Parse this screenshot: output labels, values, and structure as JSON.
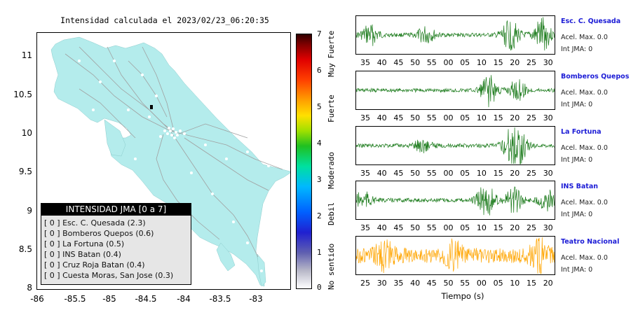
{
  "map": {
    "title": "Intensidad calculada el 2023/02/23_06:20:35",
    "y_ticks": [
      "11",
      "10.5",
      "10",
      "9.5",
      "9",
      "8.5",
      "8"
    ],
    "x_ticks": [
      "-86",
      "-85.5",
      "-85",
      "-84.5",
      "-84",
      "-83.5",
      "-83"
    ],
    "land_color": "#b4ecec",
    "road_color": "#a0a0a0"
  },
  "legend": {
    "header": "INTENSIDAD JMA [0 a 7]",
    "items": [
      "[ 0 ]  Esc. C. Quesada (2.3)",
      "[ 0 ]  Bomberos Quepos (0.6)",
      "[ 0 ]  La Fortuna (0.5)",
      "[ 0 ]  INS Batan (0.4)",
      "[ 0 ]  Cruz Roja Batan (0.4)",
      "[ 0 ]  Cuesta Moras, San Jose (0.3)"
    ]
  },
  "colorbar": {
    "ticks": [
      "7",
      "6",
      "5",
      "4",
      "3",
      "2",
      "1",
      "0"
    ],
    "categories": [
      "Muy Fuerte",
      "Fuerte",
      "Moderado",
      "Debil",
      "No sentido"
    ]
  },
  "stations": [
    {
      "name": "Esc. C. Quesada",
      "acel": "Acel. Max. 0.0",
      "int": "Int JMA: 0",
      "color": "#1a7a1a",
      "ticks": [
        "35",
        "40",
        "45",
        "50",
        "55",
        "00",
        "05",
        "10",
        "15",
        "20",
        "25",
        "30"
      ]
    },
    {
      "name": "Bomberos Quepos",
      "acel": "Acel. Max. 0.0",
      "int": "Int JMA: 0",
      "color": "#1a7a1a",
      "ticks": [
        "35",
        "40",
        "45",
        "50",
        "55",
        "00",
        "05",
        "10",
        "15",
        "20",
        "25",
        "30"
      ]
    },
    {
      "name": "La Fortuna",
      "acel": "Acel. Max. 0.0",
      "int": "Int JMA: 0",
      "color": "#1a7a1a",
      "ticks": [
        "35",
        "40",
        "45",
        "50",
        "55",
        "00",
        "05",
        "10",
        "15",
        "20",
        "25",
        "30"
      ]
    },
    {
      "name": "INS Batan",
      "acel": "Acel. Max. 0.0",
      "int": "Int JMA: 0",
      "color": "#1a7a1a",
      "ticks": [
        "35",
        "40",
        "45",
        "50",
        "55",
        "00",
        "05",
        "10",
        "15",
        "20",
        "25",
        "30"
      ]
    },
    {
      "name": "Teatro Nacional",
      "acel": "Acel. Max. 0.0",
      "int": "Int JMA: 0",
      "color": "#ffa500",
      "ticks": [
        "25",
        "30",
        "35",
        "40",
        "45",
        "50",
        "55",
        "00",
        "05",
        "10",
        "15",
        "20"
      ]
    }
  ],
  "time_axis_label": "Tiempo (s)"
}
